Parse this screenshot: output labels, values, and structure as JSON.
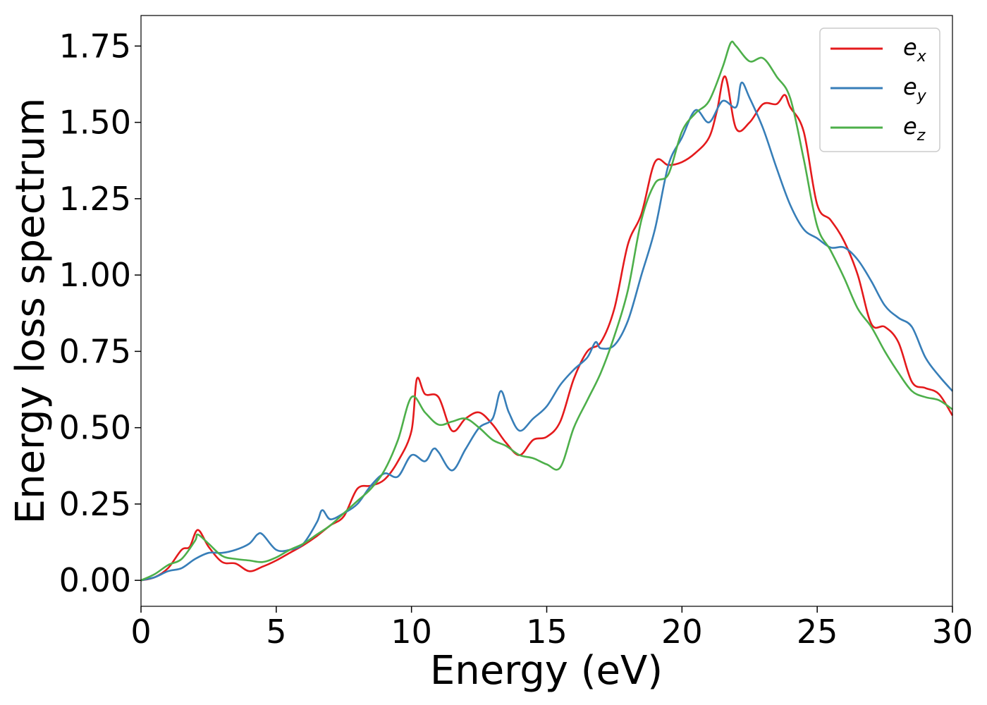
{
  "chart_data": {
    "type": "line",
    "title": "",
    "xlabel": "Energy (eV)",
    "ylabel": "Energy loss spectrum",
    "xlim": [
      0,
      30
    ],
    "ylim": [
      -0.085,
      1.85
    ],
    "xticks": [
      0,
      5,
      10,
      15,
      20,
      25,
      30
    ],
    "xtick_labels": [
      "0",
      "5",
      "10",
      "15",
      "20",
      "25",
      "30"
    ],
    "yticks": [
      0,
      0.25,
      0.5,
      0.75,
      1.0,
      1.25,
      1.5,
      1.75
    ],
    "ytick_labels": [
      "0.00",
      "0.25",
      "0.50",
      "0.75",
      "1.00",
      "1.25",
      "1.50",
      "1.75"
    ],
    "grid": false,
    "legend_position": "top-right",
    "series": [
      {
        "name": "e",
        "subscript": "x",
        "color": "#e41a1c",
        "points": [
          [
            0,
            0
          ],
          [
            0.5,
            0.01
          ],
          [
            1,
            0.04
          ],
          [
            1.5,
            0.1
          ],
          [
            1.8,
            0.11
          ],
          [
            2.1,
            0.165
          ],
          [
            2.5,
            0.11
          ],
          [
            3,
            0.06
          ],
          [
            3.5,
            0.055
          ],
          [
            4,
            0.03
          ],
          [
            4.5,
            0.045
          ],
          [
            5,
            0.065
          ],
          [
            5.5,
            0.09
          ],
          [
            6,
            0.115
          ],
          [
            6.5,
            0.145
          ],
          [
            7,
            0.18
          ],
          [
            7.5,
            0.21
          ],
          [
            8,
            0.3
          ],
          [
            8.5,
            0.31
          ],
          [
            9,
            0.33
          ],
          [
            9.5,
            0.39
          ],
          [
            10,
            0.49
          ],
          [
            10.2,
            0.66
          ],
          [
            10.5,
            0.61
          ],
          [
            11,
            0.6
          ],
          [
            11.5,
            0.49
          ],
          [
            12,
            0.53
          ],
          [
            12.5,
            0.55
          ],
          [
            13,
            0.51
          ],
          [
            13.5,
            0.45
          ],
          [
            14,
            0.41
          ],
          [
            14.5,
            0.46
          ],
          [
            15,
            0.47
          ],
          [
            15.5,
            0.52
          ],
          [
            16,
            0.66
          ],
          [
            16.5,
            0.75
          ],
          [
            17,
            0.78
          ],
          [
            17.5,
            0.89
          ],
          [
            18,
            1.1
          ],
          [
            18.5,
            1.2
          ],
          [
            19,
            1.37
          ],
          [
            19.5,
            1.36
          ],
          [
            20,
            1.37
          ],
          [
            20.5,
            1.4
          ],
          [
            21,
            1.45
          ],
          [
            21.3,
            1.54
          ],
          [
            21.6,
            1.65
          ],
          [
            22,
            1.48
          ],
          [
            22.5,
            1.5
          ],
          [
            23,
            1.56
          ],
          [
            23.5,
            1.56
          ],
          [
            23.8,
            1.59
          ],
          [
            24,
            1.55
          ],
          [
            24.5,
            1.47
          ],
          [
            25,
            1.23
          ],
          [
            25.5,
            1.18
          ],
          [
            26,
            1.11
          ],
          [
            26.5,
            1.0
          ],
          [
            27,
            0.84
          ],
          [
            27.5,
            0.83
          ],
          [
            28,
            0.78
          ],
          [
            28.5,
            0.65
          ],
          [
            29,
            0.63
          ],
          [
            29.5,
            0.61
          ],
          [
            30,
            0.54
          ]
        ]
      },
      {
        "name": "e",
        "subscript": "y",
        "color": "#377eb8",
        "points": [
          [
            0,
            0
          ],
          [
            0.5,
            0.01
          ],
          [
            1,
            0.03
          ],
          [
            1.5,
            0.04
          ],
          [
            2,
            0.07
          ],
          [
            2.5,
            0.09
          ],
          [
            3,
            0.09
          ],
          [
            3.5,
            0.1
          ],
          [
            4,
            0.12
          ],
          [
            4.3,
            0.15
          ],
          [
            4.5,
            0.15
          ],
          [
            5,
            0.1
          ],
          [
            5.5,
            0.1
          ],
          [
            6,
            0.12
          ],
          [
            6.5,
            0.19
          ],
          [
            6.7,
            0.23
          ],
          [
            7,
            0.2
          ],
          [
            7.5,
            0.22
          ],
          [
            8,
            0.25
          ],
          [
            8.5,
            0.31
          ],
          [
            9,
            0.35
          ],
          [
            9.5,
            0.34
          ],
          [
            10,
            0.41
          ],
          [
            10.5,
            0.39
          ],
          [
            10.8,
            0.43
          ],
          [
            11,
            0.42
          ],
          [
            11.5,
            0.36
          ],
          [
            12,
            0.43
          ],
          [
            12.5,
            0.5
          ],
          [
            13,
            0.53
          ],
          [
            13.3,
            0.62
          ],
          [
            13.6,
            0.55
          ],
          [
            14,
            0.49
          ],
          [
            14.5,
            0.53
          ],
          [
            15,
            0.57
          ],
          [
            15.5,
            0.64
          ],
          [
            16,
            0.69
          ],
          [
            16.5,
            0.73
          ],
          [
            16.8,
            0.78
          ],
          [
            17,
            0.76
          ],
          [
            17.5,
            0.77
          ],
          [
            18,
            0.85
          ],
          [
            18.5,
            1.0
          ],
          [
            19,
            1.15
          ],
          [
            19.5,
            1.36
          ],
          [
            20,
            1.45
          ],
          [
            20.5,
            1.54
          ],
          [
            21,
            1.5
          ],
          [
            21.5,
            1.57
          ],
          [
            22,
            1.55
          ],
          [
            22.2,
            1.63
          ],
          [
            22.5,
            1.58
          ],
          [
            23,
            1.48
          ],
          [
            23.5,
            1.35
          ],
          [
            24,
            1.23
          ],
          [
            24.5,
            1.15
          ],
          [
            25,
            1.12
          ],
          [
            25.5,
            1.09
          ],
          [
            26,
            1.09
          ],
          [
            26.5,
            1.05
          ],
          [
            27,
            0.98
          ],
          [
            27.5,
            0.9
          ],
          [
            28,
            0.86
          ],
          [
            28.5,
            0.83
          ],
          [
            29,
            0.73
          ],
          [
            29.5,
            0.67
          ],
          [
            30,
            0.62
          ]
        ]
      },
      {
        "name": "e",
        "subscript": "z",
        "color": "#4daf4a",
        "points": [
          [
            0,
            0
          ],
          [
            0.5,
            0.02
          ],
          [
            1,
            0.05
          ],
          [
            1.5,
            0.07
          ],
          [
            2,
            0.13
          ],
          [
            2.1,
            0.15
          ],
          [
            2.5,
            0.12
          ],
          [
            3,
            0.08
          ],
          [
            3.5,
            0.07
          ],
          [
            4,
            0.065
          ],
          [
            4.5,
            0.06
          ],
          [
            5,
            0.075
          ],
          [
            5.5,
            0.1
          ],
          [
            6,
            0.12
          ],
          [
            6.5,
            0.15
          ],
          [
            7,
            0.18
          ],
          [
            7.5,
            0.22
          ],
          [
            8,
            0.26
          ],
          [
            8.5,
            0.3
          ],
          [
            9,
            0.36
          ],
          [
            9.5,
            0.46
          ],
          [
            10,
            0.6
          ],
          [
            10.5,
            0.55
          ],
          [
            11,
            0.51
          ],
          [
            11.5,
            0.52
          ],
          [
            12,
            0.53
          ],
          [
            12.5,
            0.5
          ],
          [
            13,
            0.46
          ],
          [
            13.5,
            0.44
          ],
          [
            14,
            0.41
          ],
          [
            14.5,
            0.4
          ],
          [
            15,
            0.38
          ],
          [
            15.5,
            0.37
          ],
          [
            16,
            0.5
          ],
          [
            16.5,
            0.59
          ],
          [
            17,
            0.68
          ],
          [
            17.5,
            0.8
          ],
          [
            18,
            0.95
          ],
          [
            18.5,
            1.18
          ],
          [
            19,
            1.3
          ],
          [
            19.5,
            1.33
          ],
          [
            20,
            1.47
          ],
          [
            20.5,
            1.53
          ],
          [
            21,
            1.57
          ],
          [
            21.5,
            1.68
          ],
          [
            21.8,
            1.76
          ],
          [
            22,
            1.75
          ],
          [
            22.5,
            1.7
          ],
          [
            23,
            1.71
          ],
          [
            23.5,
            1.65
          ],
          [
            24,
            1.58
          ],
          [
            24.5,
            1.38
          ],
          [
            25,
            1.16
          ],
          [
            25.5,
            1.08
          ],
          [
            26,
            0.99
          ],
          [
            26.5,
            0.89
          ],
          [
            27,
            0.83
          ],
          [
            27.5,
            0.75
          ],
          [
            28,
            0.68
          ],
          [
            28.5,
            0.62
          ],
          [
            29,
            0.6
          ],
          [
            29.5,
            0.59
          ],
          [
            30,
            0.56
          ]
        ]
      }
    ]
  }
}
